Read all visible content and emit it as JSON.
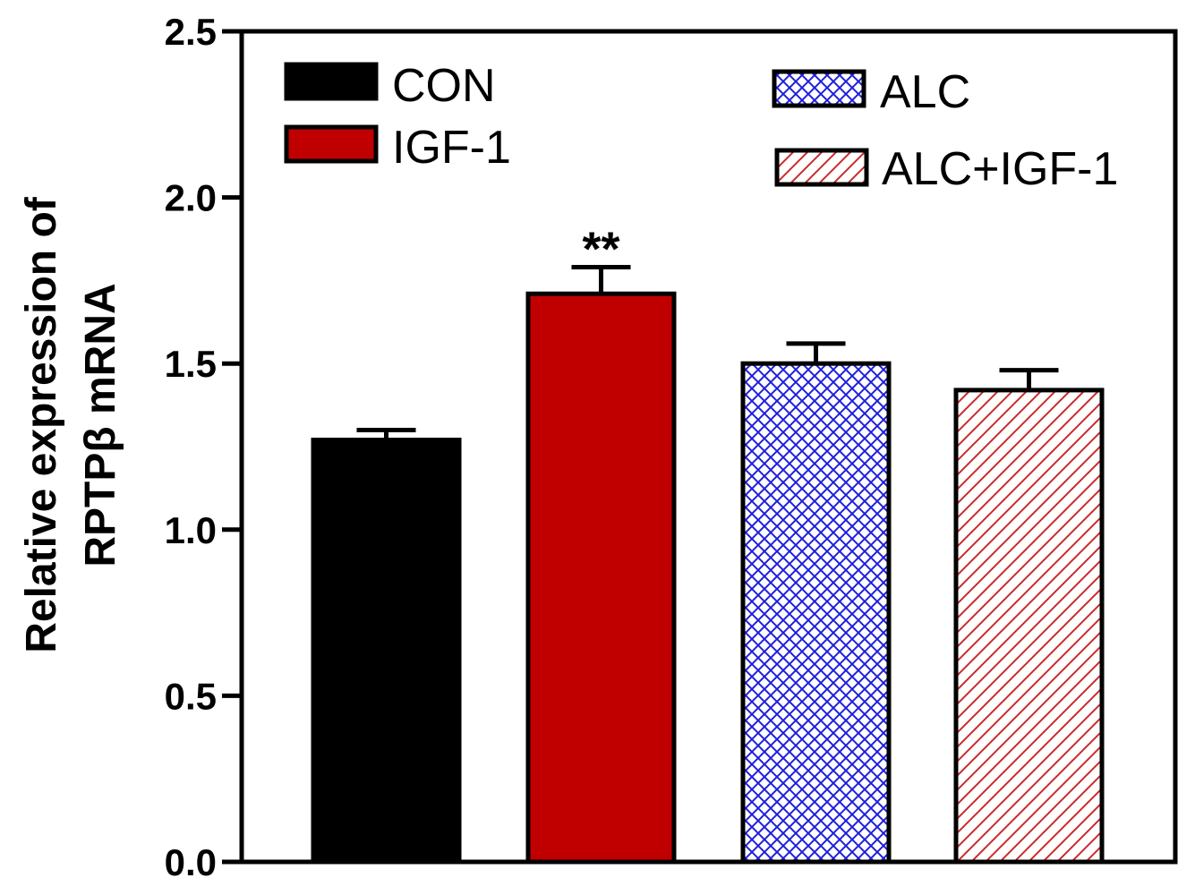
{
  "chart_data": {
    "type": "bar",
    "title": "",
    "xlabel": "",
    "ylabel_line1": "Relative expression of",
    "ylabel_line2": "RPTPβ mRNA",
    "ylim": [
      0,
      2.5
    ],
    "yticks": [
      "0.0",
      "0.5",
      "1.0",
      "1.5",
      "2.0",
      "2.5"
    ],
    "categories": [
      "CON",
      "IGF-1",
      "ALC",
      "ALC+IGF-1"
    ],
    "values": [
      1.27,
      1.71,
      1.5,
      1.42
    ],
    "errors": [
      0.03,
      0.08,
      0.06,
      0.06
    ],
    "annotations": [
      "",
      "**",
      "",
      ""
    ],
    "fills": [
      "solid",
      "solid",
      "crosshatch",
      "diagonal"
    ],
    "colors": [
      "#000000",
      "#c00000",
      "#1f1fdd",
      "#cc2a2a"
    ],
    "legend": {
      "placement": "top",
      "entries": [
        "CON",
        "IGF-1",
        "ALC",
        "ALC+IGF-1"
      ]
    }
  }
}
